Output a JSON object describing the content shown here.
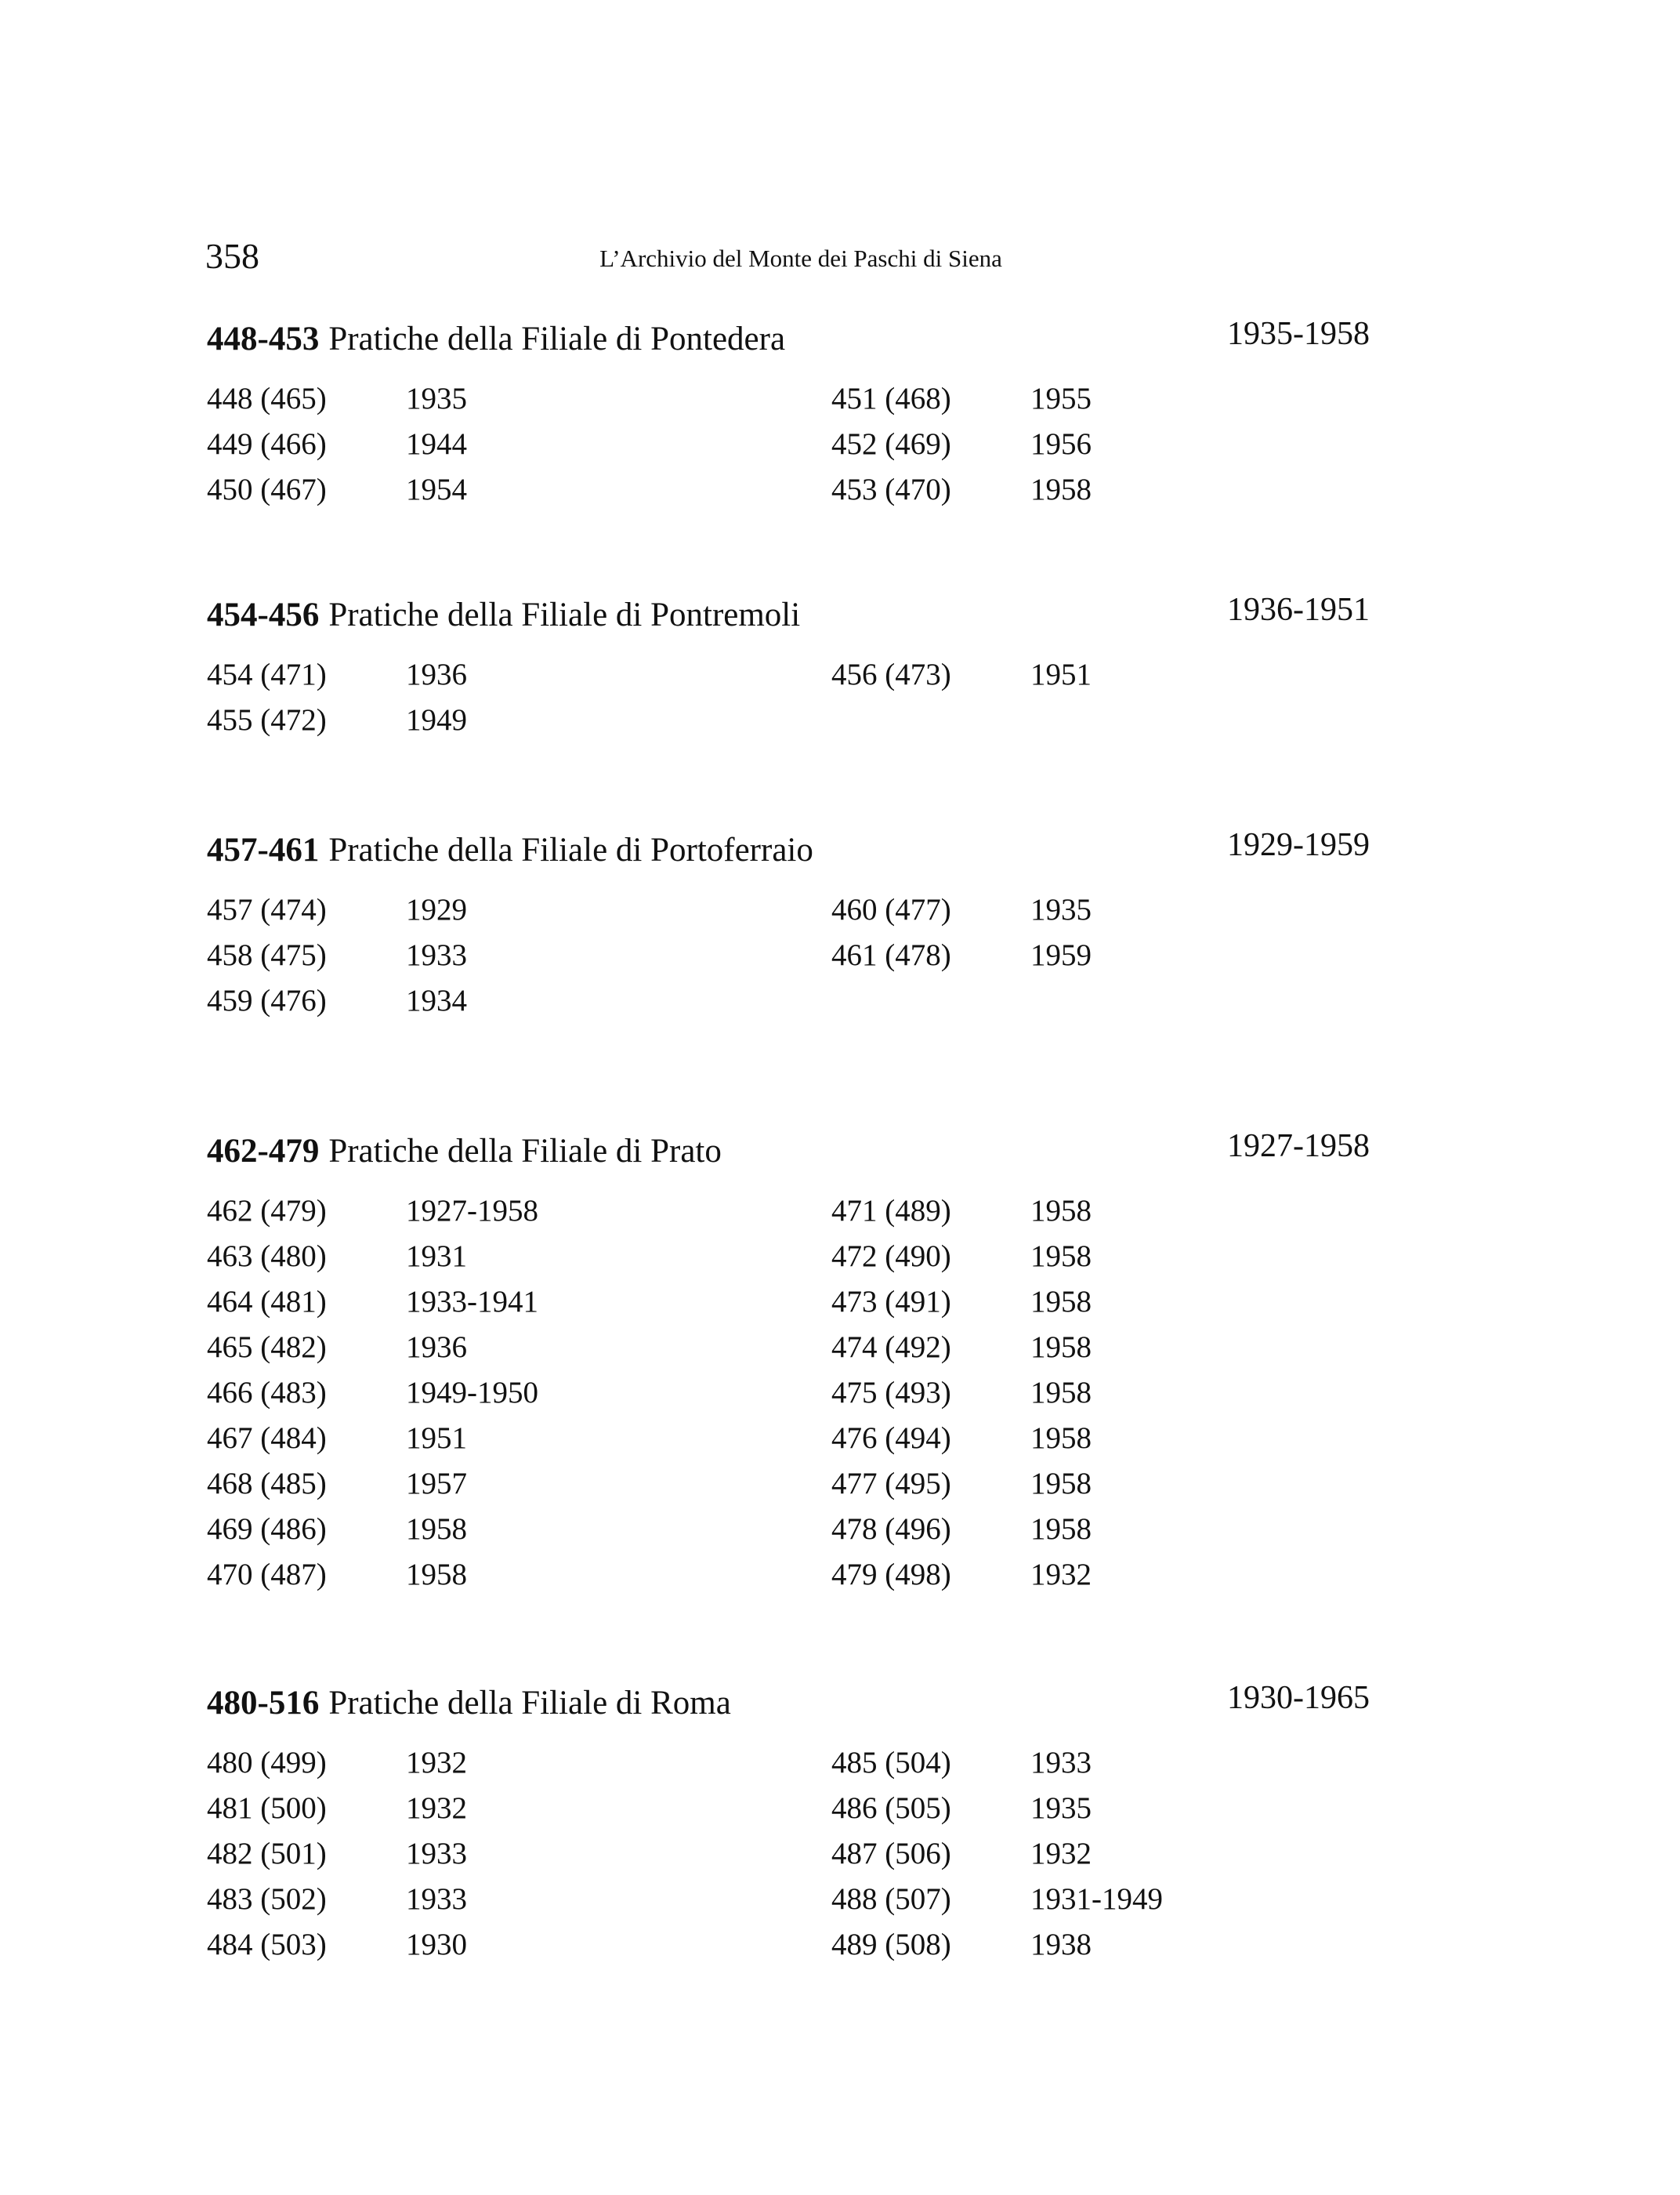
{
  "header": {
    "page_number": "358",
    "running_title": "L’Archivio del Monte dei Paschi di Siena"
  },
  "sections": [
    {
      "code": "448-453",
      "title": "Pratiche della Filiale di Pontedera",
      "range": "1935-1958",
      "left": [
        [
          "448 (465)",
          "1935"
        ],
        [
          "449 (466)",
          "1944"
        ],
        [
          "450 (467)",
          "1954"
        ]
      ],
      "right": [
        [
          "451 (468)",
          "1955"
        ],
        [
          "452 (469)",
          "1956"
        ],
        [
          "453 (470)",
          "1958"
        ]
      ]
    },
    {
      "code": "454-456",
      "title": "Pratiche della Filiale di Pontremoli",
      "range": "1936-1951",
      "left": [
        [
          "454 (471)",
          "1936"
        ],
        [
          "455 (472)",
          "1949"
        ]
      ],
      "right": [
        [
          "456 (473)",
          "1951"
        ]
      ]
    },
    {
      "code": "457-461",
      "title": "Pratiche della Filiale di Portoferraio",
      "range": "1929-1959",
      "left": [
        [
          "457 (474)",
          "1929"
        ],
        [
          "458 (475)",
          "1933"
        ],
        [
          "459 (476)",
          "1934"
        ]
      ],
      "right": [
        [
          "460 (477)",
          "1935"
        ],
        [
          "461 (478)",
          "1959"
        ]
      ]
    },
    {
      "code": "462-479",
      "title": "Pratiche della Filiale di Prato",
      "range": "1927-1958",
      "left": [
        [
          "462 (479)",
          "1927-1958"
        ],
        [
          "463 (480)",
          "1931"
        ],
        [
          "464 (481)",
          "1933-1941"
        ],
        [
          "465 (482)",
          "1936"
        ],
        [
          "466 (483)",
          "1949-1950"
        ],
        [
          "467 (484)",
          "1951"
        ],
        [
          "468 (485)",
          "1957"
        ],
        [
          "469 (486)",
          "1958"
        ],
        [
          "470 (487)",
          "1958"
        ]
      ],
      "right": [
        [
          "471 (489)",
          "1958"
        ],
        [
          "472 (490)",
          "1958"
        ],
        [
          "473 (491)",
          "1958"
        ],
        [
          "474 (492)",
          "1958"
        ],
        [
          "475 (493)",
          "1958"
        ],
        [
          "476 (494)",
          "1958"
        ],
        [
          "477 (495)",
          "1958"
        ],
        [
          "478 (496)",
          "1958"
        ],
        [
          "479 (498)",
          "1932"
        ]
      ]
    },
    {
      "code": "480-516",
      "title": "Pratiche della Filiale di Roma",
      "range": "1930-1965",
      "left": [
        [
          "480 (499)",
          "1932"
        ],
        [
          "481 (500)",
          "1932"
        ],
        [
          "482 (501)",
          "1933"
        ],
        [
          "483 (502)",
          "1933"
        ],
        [
          "484 (503)",
          "1930"
        ]
      ],
      "right": [
        [
          "485 (504)",
          "1933"
        ],
        [
          "486 (505)",
          "1935"
        ],
        [
          "487 (506)",
          "1932"
        ],
        [
          "488 (507)",
          "1931-1949"
        ],
        [
          "489 (508)",
          "1938"
        ]
      ]
    }
  ]
}
